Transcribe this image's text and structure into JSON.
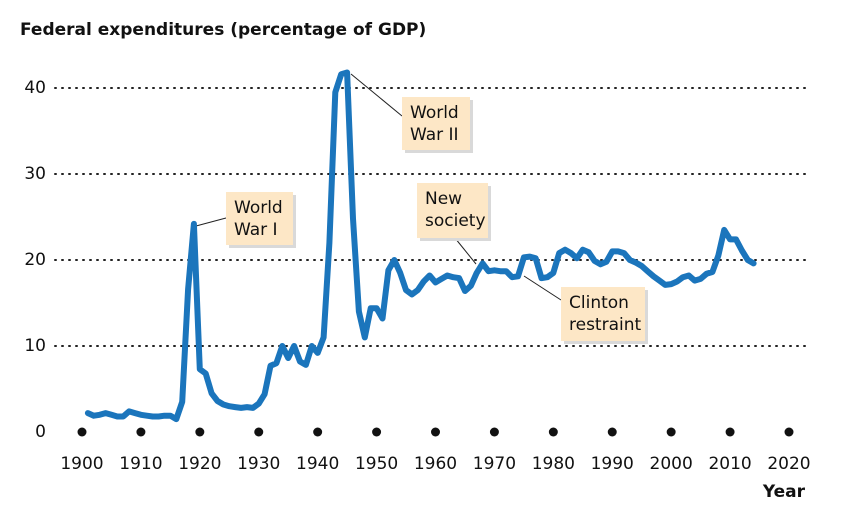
{
  "chart_data": {
    "type": "line",
    "title": "Federal expenditures (percentage of GDP)",
    "xlabel": "Year",
    "color": "#1b75bc",
    "xlim": [
      1900,
      2020
    ],
    "xticks": [
      1900,
      1910,
      1920,
      1930,
      1940,
      1950,
      1960,
      1970,
      1980,
      1990,
      2000,
      2010,
      2020
    ],
    "ylim": [
      0,
      45
    ],
    "yticks": [
      0,
      10,
      20,
      30,
      40
    ],
    "grid": true,
    "x": [
      1901,
      1902,
      1903,
      1904,
      1905,
      1906,
      1907,
      1908,
      1909,
      1910,
      1911,
      1912,
      1913,
      1914,
      1915,
      1916,
      1917,
      1918,
      1919,
      1920,
      1921,
      1922,
      1923,
      1924,
      1925,
      1926,
      1927,
      1928,
      1929,
      1930,
      1931,
      1932,
      1933,
      1934,
      1935,
      1936,
      1937,
      1938,
      1939,
      1940,
      1941,
      1942,
      1943,
      1944,
      1945,
      1946,
      1947,
      1948,
      1949,
      1950,
      1951,
      1952,
      1953,
      1954,
      1955,
      1956,
      1957,
      1958,
      1959,
      1960,
      1961,
      1962,
      1963,
      1964,
      1965,
      1966,
      1967,
      1968,
      1969,
      1970,
      1971,
      1972,
      1973,
      1974,
      1975,
      1976,
      1977,
      1978,
      1979,
      1980,
      1981,
      1982,
      1983,
      1984,
      1985,
      1986,
      1987,
      1988,
      1989,
      1990,
      1991,
      1992,
      1993,
      1994,
      1995,
      1996,
      1997,
      1998,
      1999,
      2000,
      2001,
      2002,
      2003,
      2004,
      2005,
      2006,
      2007,
      2008,
      2009,
      2010,
      2011,
      2012,
      2013,
      2014
    ],
    "values": [
      2.2,
      1.9,
      2.0,
      2.2,
      2.0,
      1.8,
      1.8,
      2.4,
      2.2,
      2.0,
      1.9,
      1.8,
      1.8,
      1.9,
      1.9,
      1.5,
      3.5,
      16.6,
      24.2,
      7.3,
      6.8,
      4.5,
      3.6,
      3.2,
      3.0,
      2.9,
      2.8,
      2.9,
      2.8,
      3.3,
      4.4,
      7.7,
      8.0,
      10.0,
      8.6,
      10.0,
      8.2,
      7.8,
      10.0,
      9.2,
      11.0,
      22.0,
      39.5,
      41.6,
      41.8,
      24.8,
      14.0,
      11.0,
      14.4,
      14.4,
      13.2,
      18.8,
      20.0,
      18.5,
      16.5,
      16.0,
      16.5,
      17.5,
      18.2,
      17.4,
      17.8,
      18.2,
      18.0,
      17.9,
      16.4,
      17.0,
      18.5,
      19.6,
      18.7,
      18.8,
      18.7,
      18.7,
      18.0,
      18.1,
      20.3,
      20.4,
      20.2,
      17.9,
      18.0,
      18.5,
      20.8,
      21.2,
      20.8,
      20.2,
      21.2,
      20.9,
      19.9,
      19.5,
      19.8,
      21.0,
      21.0,
      20.8,
      20.0,
      19.7,
      19.3,
      18.7,
      18.1,
      17.6,
      17.1,
      17.2,
      17.5,
      18.0,
      18.2,
      17.6,
      17.8,
      18.4,
      18.6,
      20.5,
      23.5,
      22.4,
      22.4,
      21.1,
      20.0,
      19.6
    ],
    "annotations": [
      {
        "lines": [
          "World",
          "War I"
        ]
      },
      {
        "lines": [
          "World",
          "War II"
        ]
      },
      {
        "lines": [
          "New",
          "society"
        ]
      },
      {
        "lines": [
          "Clinton",
          "restraint"
        ]
      }
    ]
  }
}
